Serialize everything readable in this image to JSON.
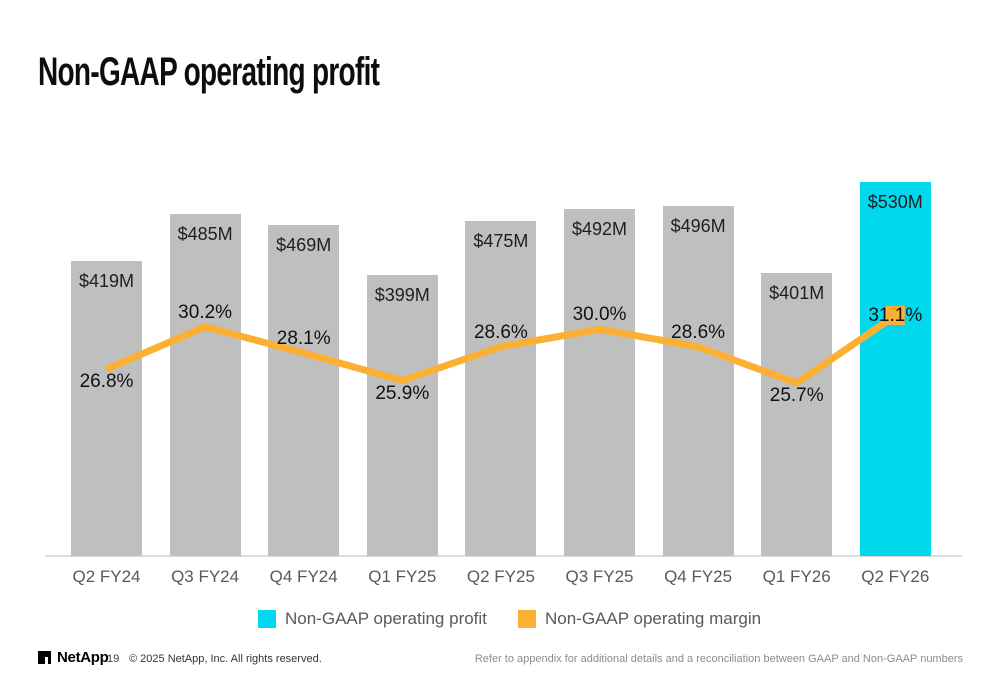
{
  "title": "Non-GAAP operating profit",
  "chart_data": {
    "type": "bar",
    "categories": [
      "Q2 FY24",
      "Q3 FY24",
      "Q4 FY24",
      "Q1 FY25",
      "Q2 FY25",
      "Q3 FY25",
      "Q4 FY25",
      "Q1 FY26",
      "Q2 FY26"
    ],
    "series": [
      {
        "name": "Non-GAAP operating profit",
        "type": "bar",
        "unit": "$M",
        "values": [
          419,
          485,
          469,
          399,
          475,
          492,
          496,
          401,
          530
        ],
        "labels": [
          "$419M",
          "$485M",
          "$469M",
          "$399M",
          "$475M",
          "$492M",
          "$496M",
          "$401M",
          "$530M"
        ]
      },
      {
        "name": "Non-GAAP operating margin",
        "type": "line",
        "unit": "%",
        "values": [
          26.8,
          30.2,
          28.1,
          25.9,
          28.6,
          30.0,
          28.6,
          25.7,
          31.1
        ],
        "labels": [
          "26.8%",
          "30.2%",
          "28.1%",
          "25.9%",
          "28.6%",
          "30.0%",
          "28.6%",
          "25.7%",
          "31.1%"
        ],
        "label_positions": [
          "below",
          "above",
          "above",
          "below",
          "above",
          "above",
          "above",
          "below",
          "center"
        ]
      }
    ],
    "highlight_index": 8,
    "grid": false,
    "axes_visible": false,
    "legend_position": "bottom",
    "colors": {
      "bar": "#BFBFBF",
      "bar_highlight": "#00D8EE",
      "line": "#FBB034",
      "axis_line": "#DCDCDC",
      "tick_text": "#595959"
    },
    "legend": [
      {
        "label": "Non-GAAP operating profit",
        "color": "#00D8EE"
      },
      {
        "label": "Non-GAAP operating margin",
        "color": "#FBB034"
      }
    ]
  },
  "footer": {
    "brand": "NetApp",
    "page_number": "19",
    "copyright": "© 2025 NetApp, Inc. All rights reserved.",
    "note": "Refer to appendix for additional details and a reconciliation between GAAP and Non-GAAP numbers"
  }
}
